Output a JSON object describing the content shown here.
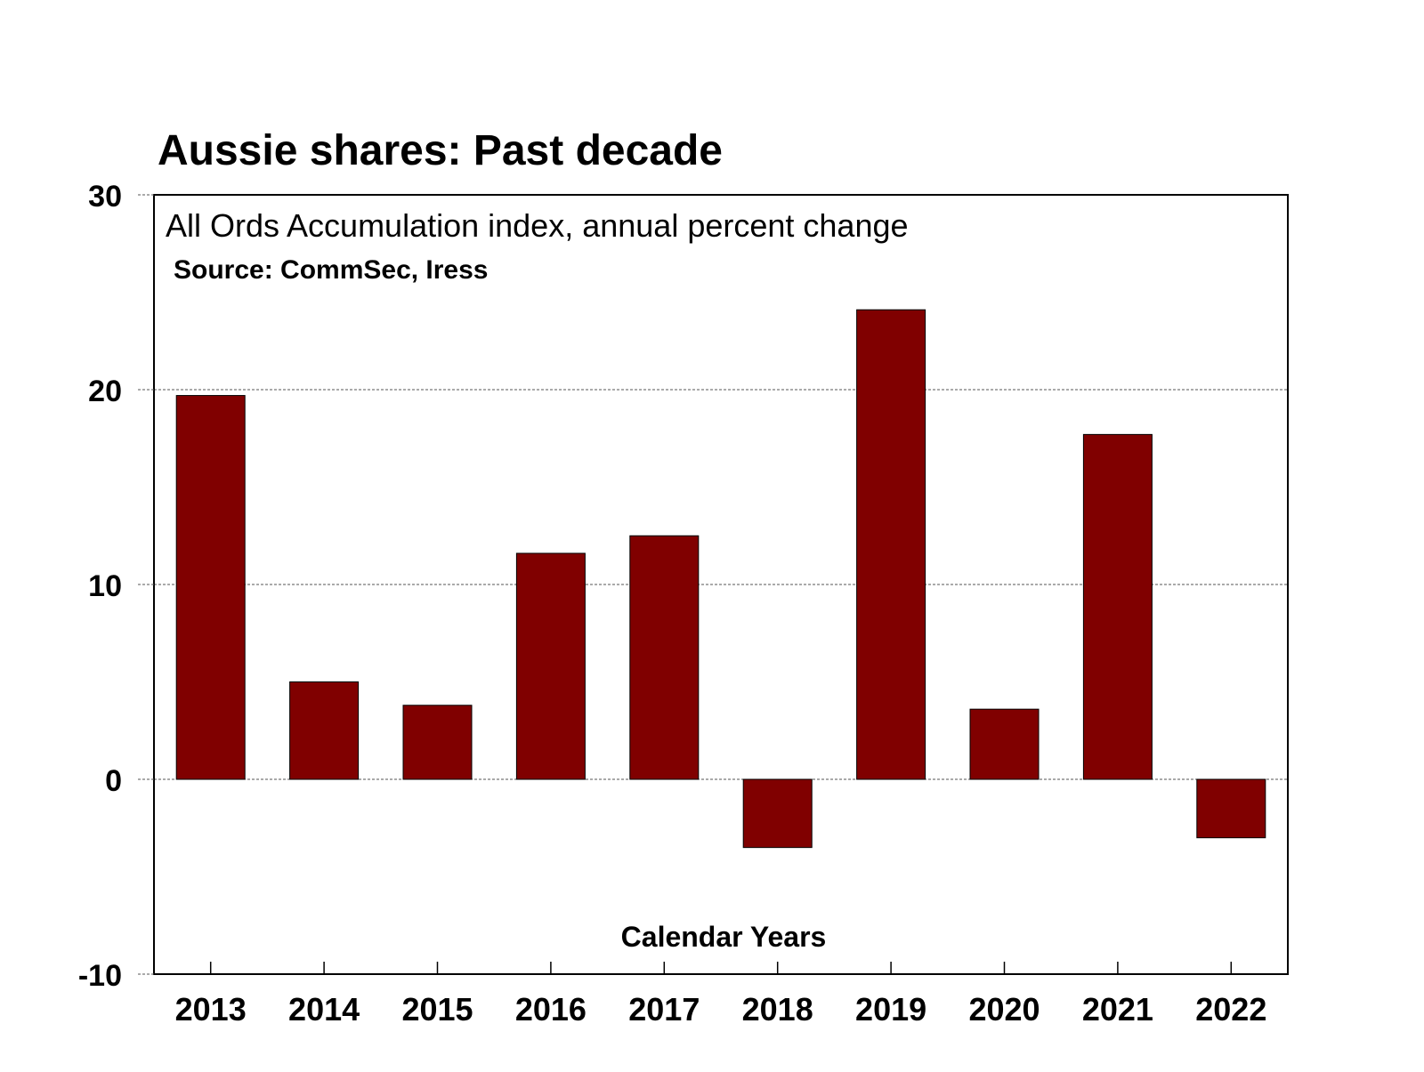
{
  "chart_data": {
    "type": "bar",
    "title": "Aussie shares: Past decade",
    "subtitle": "All Ords Accumulation index, annual percent change",
    "source": "Source: CommSec, Iress",
    "xlabel": "Calendar Years",
    "ylabel": "",
    "categories": [
      "2013",
      "2014",
      "2015",
      "2016",
      "2017",
      "2018",
      "2019",
      "2020",
      "2021",
      "2022"
    ],
    "values": [
      19.7,
      5.0,
      3.8,
      11.6,
      12.5,
      -3.5,
      24.1,
      3.6,
      17.7,
      -3.0
    ],
    "ylim": [
      -10,
      30
    ],
    "yticks": [
      30,
      20,
      10,
      0,
      -10
    ],
    "grid": true,
    "bar_color": "#800000",
    "legend": "none"
  }
}
